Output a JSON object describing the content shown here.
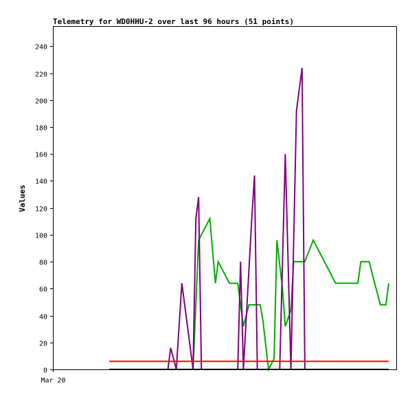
{
  "chart_data": {
    "type": "line",
    "title": "Telemetry for WD0HHU-2 over last 96 hours (51 points)",
    "ylabel": "Values",
    "xlabel": "",
    "ylim": [
      0,
      255
    ],
    "y_ticks": [
      0,
      20,
      40,
      60,
      80,
      100,
      120,
      140,
      160,
      180,
      200,
      220,
      240
    ],
    "x_tick_labels": [
      "Mar 20"
    ],
    "grid": false,
    "legend": "none",
    "series": [
      {
        "color": "#00aa00",
        "x": [
          0.0,
          0.11,
          0.16,
          0.22,
          0.3,
          0.32,
          0.36,
          0.38,
          0.39,
          0.43,
          0.45,
          0.46,
          0.48,
          0.5,
          0.51,
          0.54,
          0.55,
          0.57,
          0.59,
          0.6,
          0.62,
          0.63,
          0.65,
          0.66,
          0.7,
          0.73,
          0.77,
          0.81,
          0.83,
          0.86,
          0.87,
          0.89,
          0.9,
          0.92,
          0.93,
          0.95,
          0.97,
          0.99,
          1.0
        ],
        "y": [
          0,
          0,
          0,
          0,
          0,
          96,
          112,
          64,
          80,
          64,
          64,
          64,
          32,
          48,
          48,
          48,
          36,
          0,
          8,
          96,
          60,
          32,
          44,
          80,
          80,
          96,
          80,
          64,
          64,
          64,
          64,
          64,
          80,
          80,
          80,
          64,
          48,
          48,
          64
        ]
      },
      {
        "color": "#7f007f",
        "x": [
          0.0,
          0.2,
          0.21,
          0.22,
          0.24,
          0.26,
          0.27,
          0.3,
          0.31,
          0.32,
          0.33,
          0.34,
          0.35,
          0.36,
          0.38,
          0.4,
          0.42,
          0.43,
          0.44,
          0.46,
          0.47,
          0.48,
          0.51,
          0.52,
          0.53,
          0.55,
          0.57,
          0.58,
          0.59,
          0.6,
          0.61,
          0.63,
          0.65,
          0.67,
          0.69,
          0.7,
          0.72,
          0.73,
          0.75,
          0.76,
          0.77,
          0.79,
          0.8,
          0.82,
          0.84,
          0.86,
          0.88,
          0.9
        ],
        "y": [
          0,
          0,
          0,
          16,
          0,
          64,
          48,
          0,
          112,
          128,
          0,
          0,
          0,
          0,
          0,
          0,
          0,
          0,
          0,
          0,
          80,
          0,
          112,
          144,
          0,
          0,
          0,
          0,
          0,
          0,
          0,
          160,
          0,
          192,
          224,
          0,
          0,
          0,
          0,
          0,
          0,
          0,
          0,
          0,
          0,
          0,
          0,
          0
        ]
      },
      {
        "color": "#ff0000",
        "x": [
          0.0,
          1.0
        ],
        "y": [
          6,
          6
        ]
      },
      {
        "color": "#000000",
        "x": [
          0.0,
          1.0
        ],
        "y": [
          0,
          0
        ]
      }
    ]
  }
}
